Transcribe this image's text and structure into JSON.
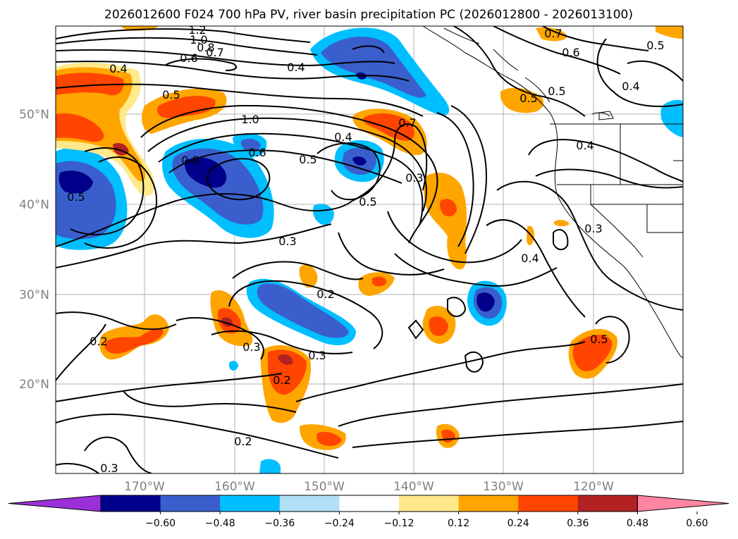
{
  "title": "2026012600 F024 700 hPa PV, river basin precipitation PC (2026012800 - 2026013100)",
  "colors": {
    "background": "#ffffff",
    "land_line": "#000000",
    "grid": "#b0b0b0",
    "pv_contour": "#000000"
  },
  "map": {
    "lat_labels": [
      "50°N",
      "40°N",
      "30°N",
      "20°N"
    ],
    "lon_labels": [
      "170°W",
      "160°W",
      "150°W",
      "140°W",
      "130°W",
      "120°W"
    ]
  },
  "colorbar": {
    "ticks": [
      "−0.60",
      "−0.48",
      "−0.36",
      "−0.24",
      "−0.12",
      "0.12",
      "0.24",
      "0.36",
      "0.48",
      "0.60"
    ],
    "colors": [
      "#9b30d9",
      "#00008b",
      "#3a5fcd",
      "#00bfff",
      "#b0e0f8",
      "#ffffff",
      "#ffe98a",
      "#ffa500",
      "#ff4500",
      "#b22222",
      "#ff85a2"
    ]
  },
  "contour_labels": [
    "1.2",
    "1.0",
    "0.8",
    "0.7",
    "0.6",
    "0.4",
    "0.5",
    "0.4",
    "0.7",
    "0.6",
    "0.5",
    "0.4",
    "0.5",
    "0.8",
    "1.0",
    "0.6",
    "0.4",
    "0.7",
    "0.5",
    "0.5",
    "0.4",
    "0.3",
    "0.5",
    "0.5",
    "0.3",
    "0.3",
    "0.4",
    "0.2",
    "0.2",
    "0.3",
    "0.3",
    "0.2",
    "0.5",
    "0.2",
    "0.3"
  ]
}
